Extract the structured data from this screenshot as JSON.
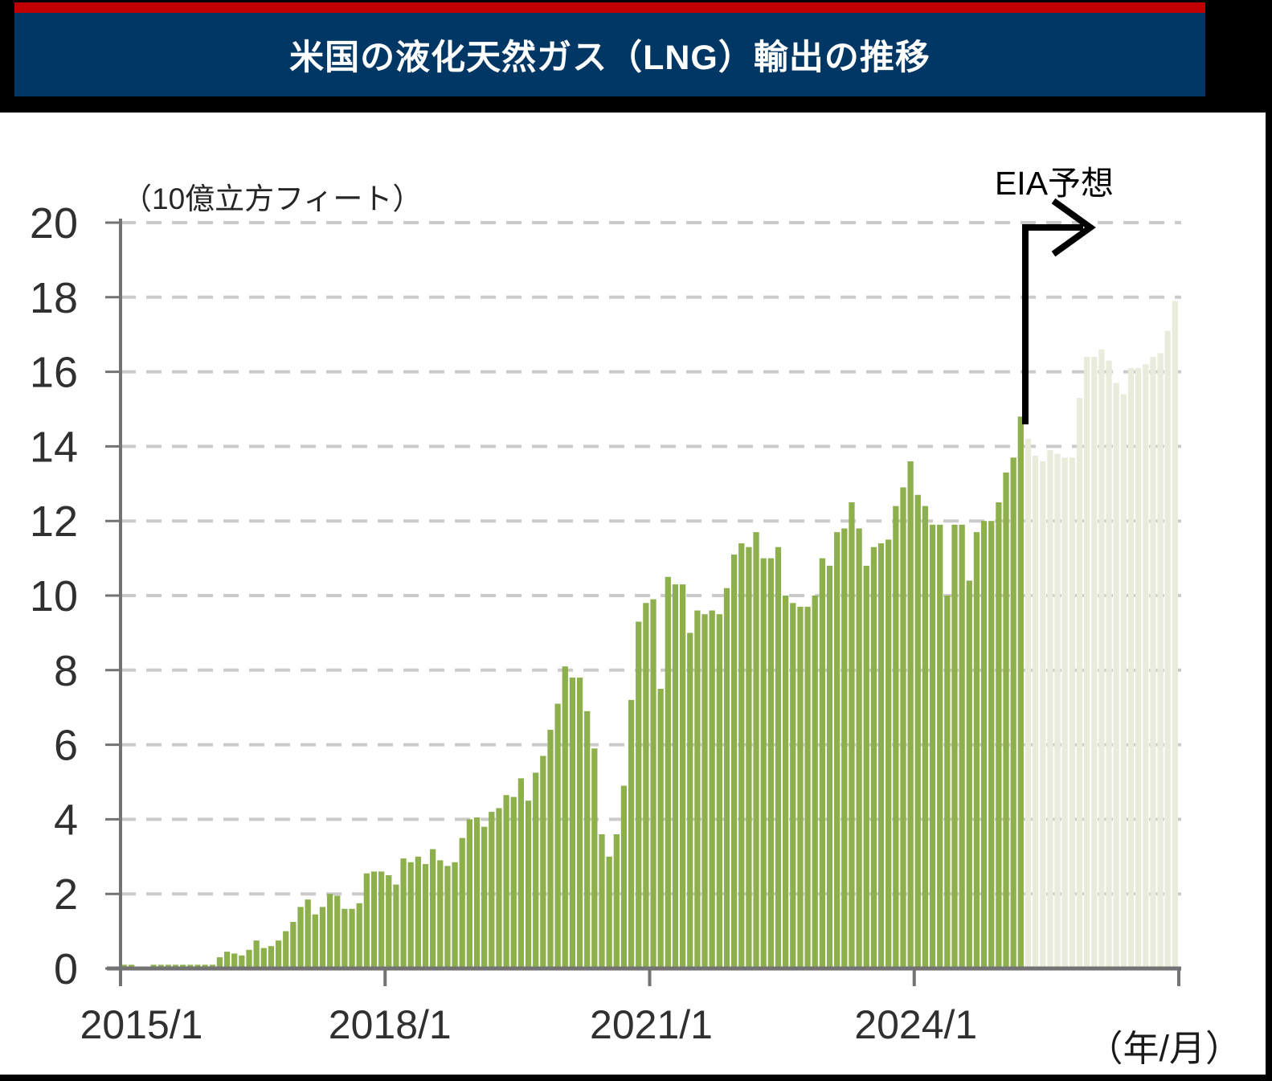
{
  "header": {
    "title": "米国の液化天然ガス（LNG）輸出の推移"
  },
  "theme": {
    "accent_red": "#c00000",
    "navy": "#003765",
    "title_text": "#ffffff",
    "panel_bg": "#ffffff",
    "frame": "#000000"
  },
  "chart_data": {
    "type": "bar",
    "title": "米国の液化天然ガス（LNG）輸出の推移",
    "unit_label": "（10億立方フィート）",
    "x_axis_unit_label": "（年/月）",
    "annotation": "EIA予想",
    "x_start": "2015/1",
    "x_end": "2026/12",
    "x_tick_labels": [
      "2015/1",
      "2018/1",
      "2021/1",
      "2024/1"
    ],
    "y_ticks": [
      0,
      2,
      4,
      6,
      8,
      10,
      12,
      14,
      16,
      18,
      20
    ],
    "ylim": [
      0,
      20
    ],
    "grid": "dashed-horizontal",
    "legend": "none",
    "actual_color": "#8daf4c",
    "forecast_color": "#e9ecda",
    "grid_color": "#cbcbcb",
    "axis_color": "#737373",
    "tick_label_color": "#303030",
    "forecast_start": "2025/4",
    "forecast_start_index": 123,
    "values": [
      0.1,
      0.1,
      0,
      0,
      0.1,
      0.1,
      0.1,
      0.1,
      0.1,
      0.1,
      0.1,
      0.1,
      0.1,
      0.3,
      0.45,
      0.4,
      0.35,
      0.5,
      0.75,
      0.55,
      0.6,
      0.75,
      1.0,
      1.25,
      1.65,
      1.85,
      1.45,
      1.65,
      2.0,
      1.95,
      1.6,
      1.6,
      1.75,
      2.55,
      2.6,
      2.6,
      2.5,
      2.25,
      2.95,
      2.85,
      3.0,
      2.8,
      3.2,
      2.9,
      2.75,
      2.85,
      3.5,
      4.0,
      4.05,
      3.8,
      4.2,
      4.3,
      4.65,
      4.6,
      5.1,
      4.5,
      5.25,
      5.7,
      6.4,
      7.1,
      8.1,
      7.8,
      7.8,
      6.9,
      5.9,
      3.6,
      3.0,
      3.6,
      4.9,
      7.2,
      9.3,
      9.8,
      9.9,
      7.5,
      10.5,
      10.3,
      10.3,
      9.0,
      9.6,
      9.5,
      9.6,
      9.5,
      10.2,
      11.1,
      11.4,
      11.3,
      11.7,
      11.0,
      11.0,
      11.3,
      10.0,
      9.8,
      9.7,
      9.7,
      10.0,
      11.0,
      10.8,
      11.7,
      11.8,
      12.5,
      11.8,
      10.8,
      11.3,
      11.4,
      11.5,
      12.4,
      12.9,
      13.6,
      12.7,
      12.4,
      11.9,
      11.9,
      10.0,
      11.9,
      11.9,
      10.4,
      11.7,
      12.0,
      12.0,
      12.5,
      13.3,
      13.7,
      14.8,
      14.2,
      13.75,
      13.6,
      13.9,
      13.8,
      13.7,
      13.7,
      15.3,
      16.4,
      16.4,
      16.6,
      16.3,
      15.7,
      15.4,
      16.1,
      16.1,
      16.2,
      16.4,
      16.5,
      17.1,
      17.9
    ]
  }
}
